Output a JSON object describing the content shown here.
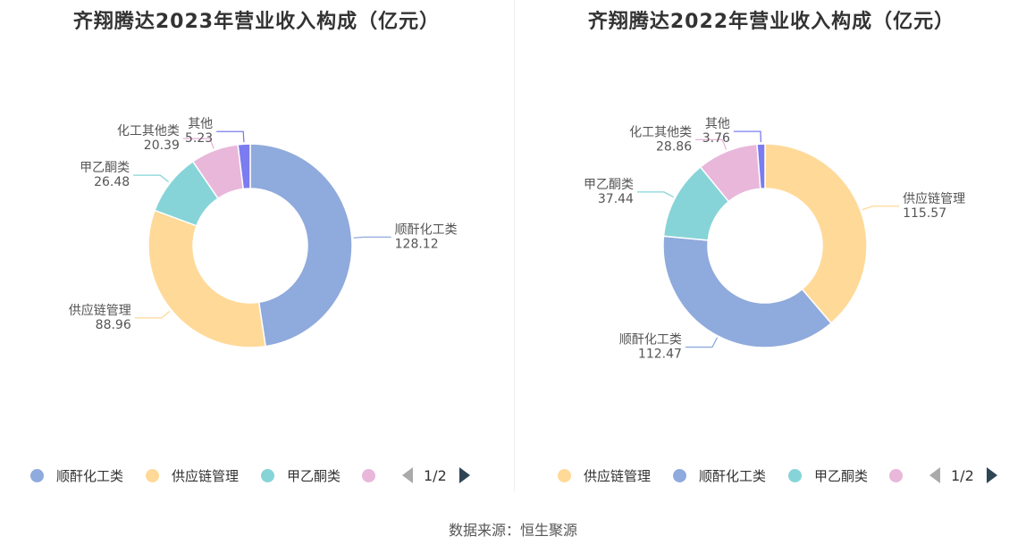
{
  "source": "数据来源：恒生聚源",
  "colors": {
    "blue": "#8faadc",
    "yellow": "#ffd998",
    "cyan": "#86d4d8",
    "pink": "#e8b7da",
    "purple": "#7b7cf0"
  },
  "chart_data": [
    {
      "type": "pie",
      "title": "齐翔腾达2023年营业收入构成（亿元）",
      "unit": "亿元",
      "slices": [
        {
          "label": "顺酐化工类",
          "value": 128.12,
          "value_text": "128.12",
          "color": "#8faadc"
        },
        {
          "label": "供应链管理",
          "value": 88.96,
          "value_text": "88.96",
          "color": "#ffd998"
        },
        {
          "label": "甲乙酮类",
          "value": 26.48,
          "value_text": "26.48",
          "color": "#86d4d8"
        },
        {
          "label": "化工其他类",
          "value": 20.39,
          "value_text": "20.39",
          "color": "#e8b7da"
        },
        {
          "label": "其他",
          "value": 5.23,
          "value_text": "5.23",
          "color": "#7b7cf0"
        }
      ],
      "legend": {
        "items": [
          {
            "label": "顺酐化工类",
            "color": "#8faadc"
          },
          {
            "label": "供应链管理",
            "color": "#ffd998"
          },
          {
            "label": "甲乙酮类",
            "color": "#86d4d8"
          },
          {
            "label": "",
            "color": "#e8b7da"
          }
        ],
        "page": "1/2"
      }
    },
    {
      "type": "pie",
      "title": "齐翔腾达2022年营业收入构成（亿元）",
      "unit": "亿元",
      "slices": [
        {
          "label": "供应链管理",
          "value": 115.57,
          "value_text": "115.57",
          "color": "#ffd998"
        },
        {
          "label": "顺酐化工类",
          "value": 112.47,
          "value_text": "112.47",
          "color": "#8faadc"
        },
        {
          "label": "甲乙酮类",
          "value": 37.44,
          "value_text": "37.44",
          "color": "#86d4d8"
        },
        {
          "label": "化工其他类",
          "value": 28.86,
          "value_text": "28.86",
          "color": "#e8b7da"
        },
        {
          "label": "其他",
          "value": 3.76,
          "value_text": "3.76",
          "color": "#7b7cf0"
        }
      ],
      "legend": {
        "items": [
          {
            "label": "供应链管理",
            "color": "#ffd998"
          },
          {
            "label": "顺酐化工类",
            "color": "#8faadc"
          },
          {
            "label": "甲乙酮类",
            "color": "#86d4d8"
          },
          {
            "label": "",
            "color": "#e8b7da"
          }
        ],
        "page": "1/2"
      }
    }
  ]
}
